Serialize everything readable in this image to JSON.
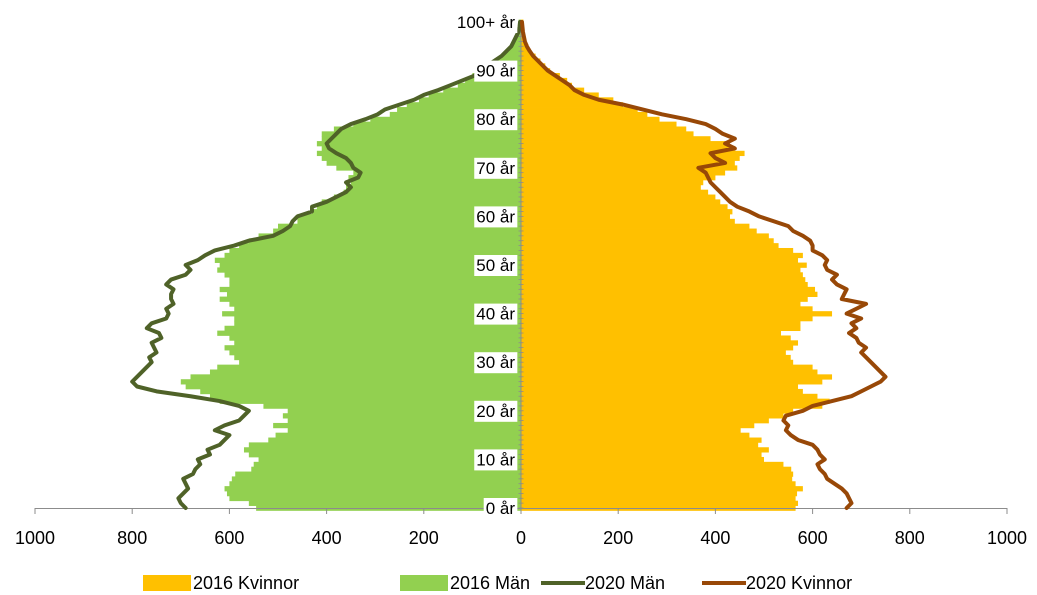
{
  "chart_data": {
    "type": "bar",
    "orientation": "horizontal",
    "subtype": "population-pyramid",
    "title": "",
    "xlabel": "",
    "ylabel": "",
    "xlim": [
      -1000,
      1000
    ],
    "x_ticks": [
      -1000,
      -800,
      -600,
      -400,
      -200,
      0,
      200,
      400,
      600,
      800,
      1000
    ],
    "x_tick_labels": [
      "1000",
      "800",
      "600",
      "400",
      "200",
      "0",
      "200",
      "400",
      "600",
      "800",
      "1000"
    ],
    "age_range": [
      0,
      100
    ],
    "age_labels": [
      "0 år",
      "10 år",
      "20 år",
      "30 år",
      "40 år",
      "50 år",
      "60 år",
      "70 år",
      "80 år",
      "90 år",
      "100+ år"
    ],
    "age_label_values": [
      0,
      10,
      20,
      30,
      40,
      50,
      60,
      70,
      80,
      90,
      100
    ],
    "grid": false,
    "legend_position": "bottom",
    "colors": {
      "kvinnor_2016": "#FFC000",
      "man_2016": "#92D050",
      "man_2020": "#4F6228",
      "kvinnor_2020": "#984807"
    },
    "series": [
      {
        "name": "2016 Kvinnor",
        "kind": "bar",
        "side": "right",
        "color": "#FFC000",
        "values": [
          565,
          570,
          565,
          568,
          580,
          565,
          558,
          560,
          556,
          540,
          500,
          495,
          510,
          488,
          495,
          470,
          452,
          480,
          510,
          540,
          560,
          620,
          635,
          610,
          580,
          570,
          620,
          640,
          610,
          600,
          560,
          555,
          545,
          560,
          570,
          555,
          535,
          575,
          575,
          600,
          640,
          600,
          575,
          590,
          610,
          605,
          590,
          585,
          580,
          575,
          588,
          570,
          580,
          560,
          530,
          520,
          510,
          485,
          470,
          440,
          430,
          435,
          425,
          410,
          400,
          385,
          370,
          375,
          400,
          420,
          445,
          440,
          450,
          460,
          440,
          430,
          390,
          355,
          340,
          320,
          285,
          260,
          240,
          210,
          190,
          160,
          130,
          105,
          95,
          80,
          60,
          50,
          40,
          30,
          20,
          15,
          10,
          8,
          5,
          4,
          5
        ]
      },
      {
        "name": "2016 Män",
        "kind": "bar",
        "side": "left",
        "color": "#92D050",
        "values": [
          545,
          560,
          600,
          605,
          610,
          600,
          595,
          588,
          555,
          550,
          540,
          560,
          570,
          560,
          520,
          505,
          480,
          510,
          480,
          490,
          480,
          530,
          620,
          640,
          660,
          690,
          700,
          680,
          640,
          625,
          580,
          590,
          600,
          610,
          590,
          600,
          625,
          610,
          590,
          590,
          615,
          590,
          600,
          620,
          605,
          620,
          600,
          600,
          610,
          625,
          620,
          630,
          610,
          600,
          580,
          560,
          540,
          510,
          500,
          460,
          460,
          430,
          420,
          410,
          385,
          365,
          360,
          350,
          355,
          345,
          380,
          400,
          410,
          420,
          410,
          420,
          410,
          410,
          385,
          345,
          310,
          270,
          255,
          235,
          210,
          190,
          160,
          130,
          115,
          100,
          85,
          70,
          55,
          40,
          30,
          22,
          15,
          10,
          8,
          6,
          5
        ]
      },
      {
        "name": "2020 Män",
        "kind": "line",
        "side": "left",
        "color": "#4F6228",
        "values": [
          690,
          700,
          705,
          695,
          685,
          690,
          695,
          675,
          670,
          660,
          665,
          640,
          645,
          620,
          610,
          600,
          630,
          610,
          580,
          570,
          560,
          580,
          620,
          680,
          750,
          790,
          800,
          790,
          780,
          770,
          760,
          765,
          750,
          755,
          760,
          740,
          745,
          770,
          760,
          730,
          725,
          730,
          715,
          720,
          720,
          715,
          730,
          720,
          690,
          680,
          690,
          665,
          650,
          630,
          590,
          560,
          510,
          490,
          475,
          470,
          460,
          430,
          430,
          400,
          380,
          360,
          350,
          360,
          335,
          330,
          345,
          350,
          360,
          380,
          395,
          400,
          390,
          380,
          370,
          350,
          320,
          295,
          280,
          250,
          220,
          200,
          170,
          145,
          120,
          95,
          85,
          70,
          55,
          40,
          30,
          20,
          15,
          10,
          5,
          3,
          2
        ]
      },
      {
        "name": "2020 Kvinnor",
        "kind": "line",
        "side": "right",
        "color": "#984807",
        "values": [
          670,
          680,
          675,
          670,
          660,
          645,
          630,
          625,
          615,
          610,
          625,
          615,
          610,
          600,
          570,
          555,
          545,
          550,
          540,
          545,
          580,
          600,
          640,
          680,
          700,
          720,
          740,
          750,
          740,
          730,
          720,
          710,
          700,
          710,
          695,
          690,
          675,
          690,
          680,
          700,
          670,
          690,
          710,
          660,
          665,
          670,
          650,
          640,
          650,
          630,
          625,
          630,
          620,
          600,
          600,
          595,
          580,
          560,
          550,
          520,
          490,
          470,
          445,
          430,
          420,
          410,
          400,
          390,
          385,
          380,
          365,
          420,
          400,
          390,
          440,
          420,
          440,
          415,
          400,
          380,
          340,
          290,
          250,
          210,
          160,
          130,
          110,
          100,
          85,
          70,
          55,
          45,
          35,
          25,
          18,
          12,
          8,
          6,
          4,
          3,
          2
        ]
      }
    ]
  },
  "legend": {
    "items": [
      {
        "label": "2016 Kvinnor"
      },
      {
        "label": "2016 Män"
      },
      {
        "label": "2020 Män"
      },
      {
        "label": "2020 Kvinnor"
      }
    ]
  }
}
